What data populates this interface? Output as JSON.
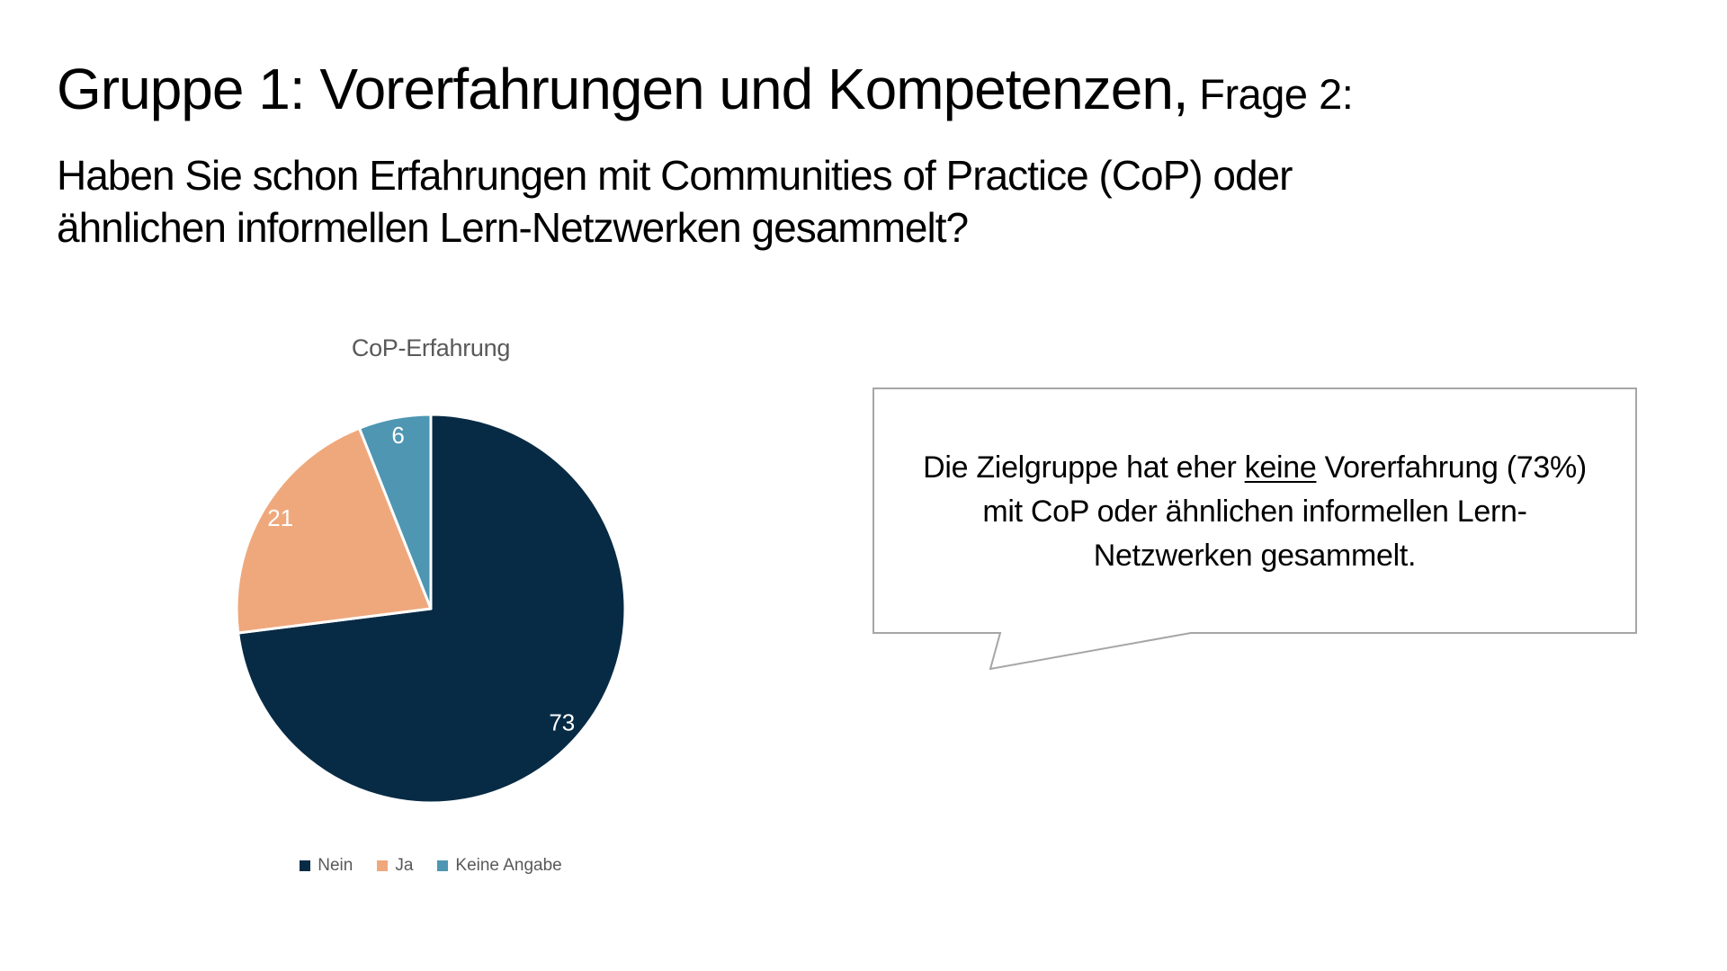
{
  "slide": {
    "title_main": "Gruppe 1: Vorerfahrungen und Kompetenzen,",
    "title_suffix": " Frage 2:",
    "question_line1": "Haben Sie schon Erfahrungen mit Communities of Practice (CoP) oder",
    "question_line2": "ähnlichen informellen Lern-Netzwerken gesammelt?"
  },
  "chart_data": {
    "type": "pie",
    "title": "CoP-Erfahrung",
    "categories": [
      "Nein",
      "Ja",
      "Keine Angabe"
    ],
    "values": [
      73,
      21,
      6
    ],
    "colors": [
      "#082b45",
      "#efa87c",
      "#4e96b2"
    ],
    "data_label_color": "#ffffff",
    "slice_border_color": "#ffffff",
    "legend_position": "bottom",
    "legend_text_color": "#595959",
    "start_angle_deg": 0,
    "direction": "clockwise"
  },
  "callout": {
    "line1_pre": "Die Zielgruppe hat eher ",
    "line1_underline": "keine",
    "line1_post": " Vorerfahrung (73%)",
    "line2": "mit CoP oder ähnlichen informellen Lern-",
    "line3": "Netzwerken gesammelt.",
    "border_color": "#a6a6a6",
    "fill_color": "#ffffff"
  }
}
